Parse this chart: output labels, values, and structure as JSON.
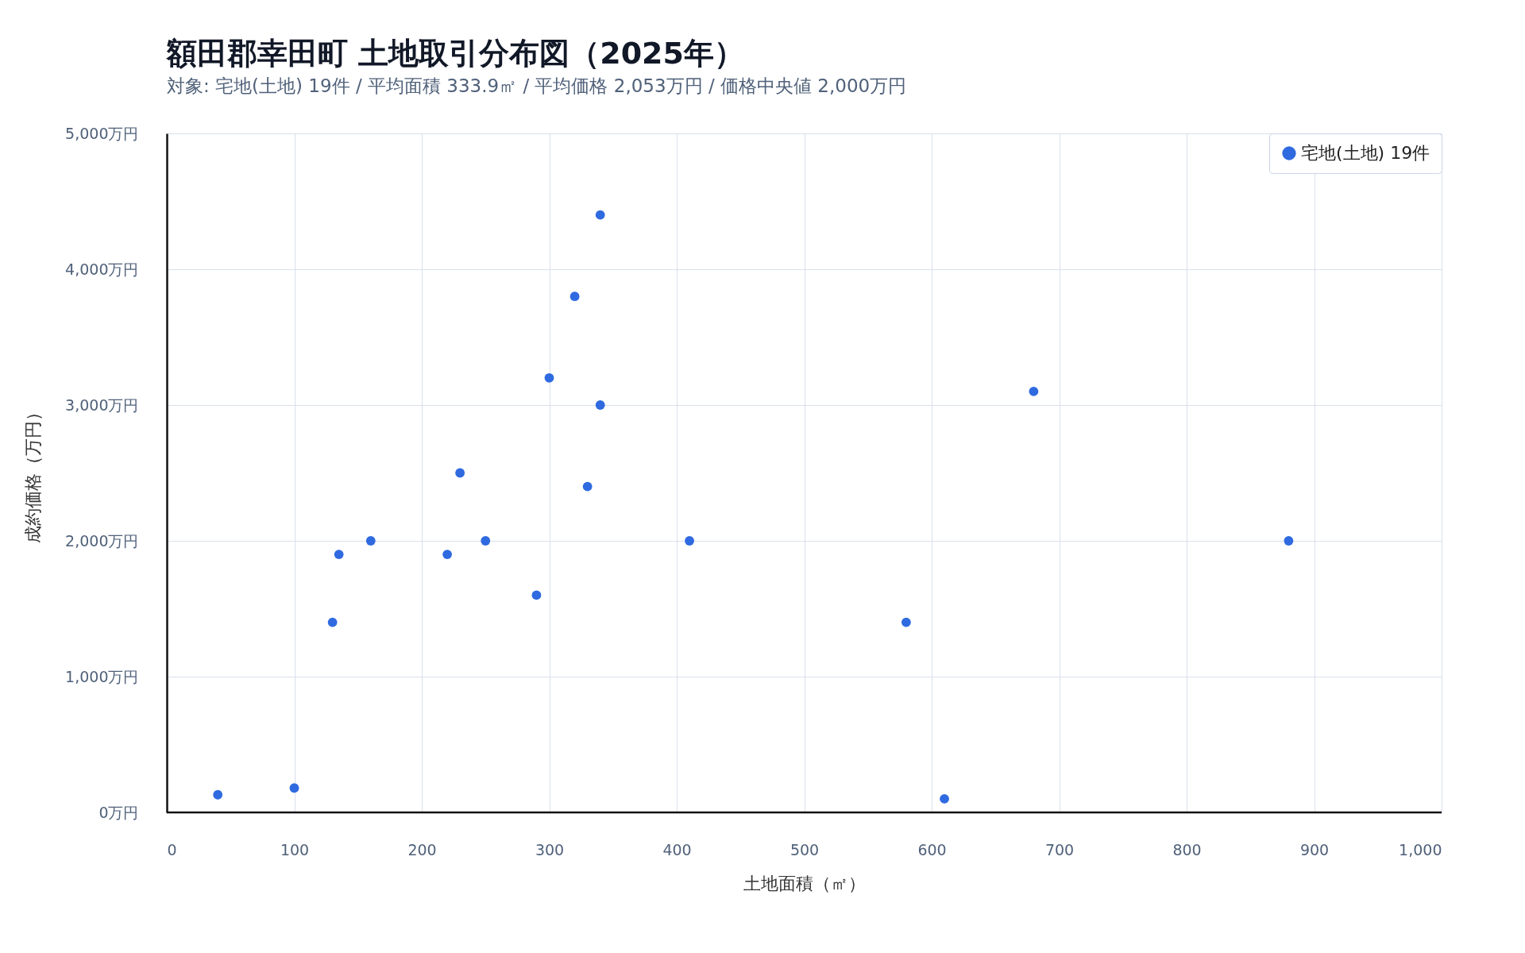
{
  "chart_data": {
    "type": "scatter",
    "title": "額田郡幸田町 土地取引分布図（2025年）",
    "subtitle": "対象: 宅地(土地) 19件 / 平均面積 333.9㎡ / 平均価格 2,053万円 / 価格中央値 2,000万円",
    "xlabel": "土地面積（㎡）",
    "ylabel": "成約価格（万円）",
    "series": [
      {
        "name": "宅地(土地) 19件",
        "color": "#2f6ae0",
        "x": [
          40,
          100,
          130,
          135,
          160,
          220,
          230,
          250,
          290,
          300,
          320,
          330,
          340,
          340,
          410,
          580,
          610,
          680,
          880
        ],
        "values": [
          130,
          180,
          1400,
          1900,
          2000,
          1900,
          2500,
          2000,
          1600,
          3200,
          3800,
          2400,
          4400,
          3000,
          2000,
          1400,
          100,
          3100,
          2000
        ]
      }
    ],
    "xlim": [
      0,
      1000
    ],
    "xticks": [
      0,
      100,
      200,
      300,
      400,
      500,
      600,
      700,
      800,
      900,
      {
        "value": 1000,
        "label": "1,000"
      }
    ],
    "ylim": [
      0,
      5000
    ],
    "yticks": [
      {
        "value": 0,
        "label": "0万円"
      },
      {
        "value": 1000,
        "label": "1,000万円"
      },
      {
        "value": 2000,
        "label": "2,000万円"
      },
      {
        "value": 3000,
        "label": "3,000万円"
      },
      {
        "value": 4000,
        "label": "4,000万円"
      },
      {
        "value": 5000,
        "label": "5,000万円"
      }
    ],
    "grid": true,
    "legend": "top right",
    "marker": "circle"
  }
}
